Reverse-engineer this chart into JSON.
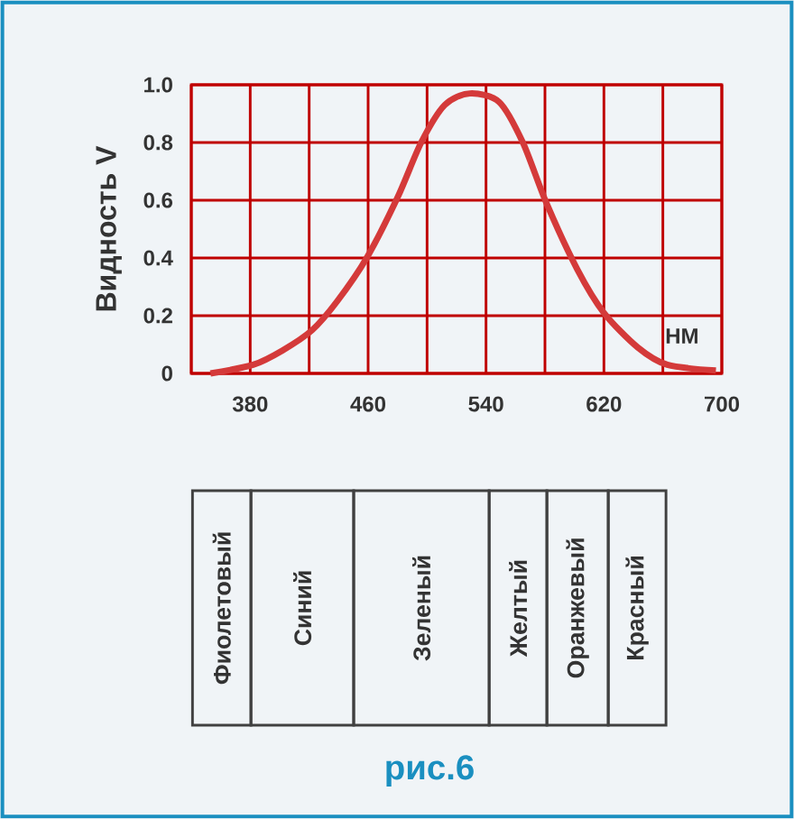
{
  "chart_data": {
    "type": "line",
    "ylabel": "Видность V",
    "xlabel": "НМ",
    "xlim": [
      340,
      700
    ],
    "ylim": [
      0,
      1
    ],
    "xticks": [
      {
        "value": 340,
        "label": null
      },
      380,
      {
        "value": 420,
        "label": null
      },
      460,
      {
        "value": 500,
        "label": null
      },
      540,
      {
        "value": 580,
        "label": null
      },
      620,
      {
        "value": 660,
        "label": null
      },
      700
    ],
    "yticks": [
      {
        "value": 0,
        "label": "0"
      },
      0.2,
      0.4,
      0.6,
      0.8,
      {
        "value": 1,
        "label": "1.0"
      }
    ],
    "grid": true,
    "series": [
      {
        "color": "#d43a3a",
        "x": [
          353,
          382,
          402,
          422,
          439,
          459,
          480,
          496,
          512,
          529,
          549,
          565,
          581,
          602,
          620,
          643,
          663,
          696
        ],
        "values": [
          0,
          0.03,
          0.08,
          0.15,
          0.25,
          0.4,
          0.61,
          0.8,
          0.93,
          0.97,
          0.94,
          0.8,
          0.59,
          0.36,
          0.21,
          0.09,
          0.03,
          0.01
        ]
      }
    ],
    "annotations": [
      "Фиолетовый",
      "Синий",
      "Зеленый",
      "Желтый",
      "Оранжевый",
      "Красный",
      "рис.6"
    ]
  }
}
